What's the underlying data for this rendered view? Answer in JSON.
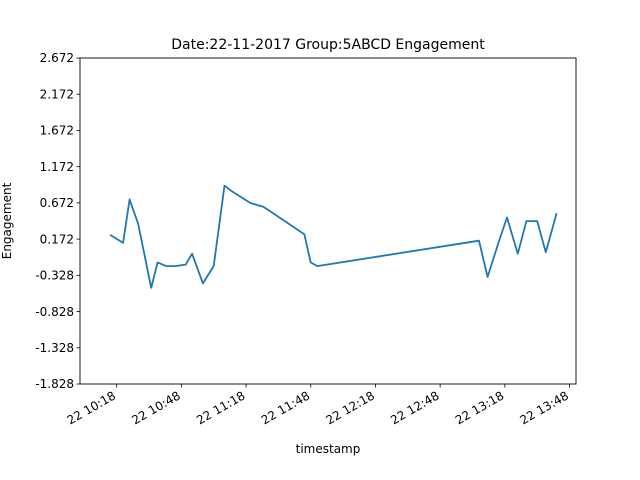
{
  "chart_data": {
    "type": "line",
    "title": "Date:22-11-2017 Group:5ABCD Engagement",
    "xlabel": "timestamp",
    "ylabel": "Engagement",
    "y_ticks": [
      "-1.828",
      "-1.328",
      "-0.828",
      "-0.328",
      "0.172",
      "0.672",
      "1.172",
      "1.672",
      "2.172",
      "2.672"
    ],
    "ylim": [
      -1.828,
      2.672
    ],
    "x_ticks": [
      "22 10:18",
      "22 10:48",
      "22 11:18",
      "22 11:48",
      "22 12:18",
      "22 12:48",
      "22 13:18",
      "22 13:48"
    ],
    "xlim": [
      "2017-11-22 10:01",
      "2017-11-22 13:51"
    ],
    "grid": false,
    "series_color": "#1f77b4",
    "series": [
      {
        "x": [
          "2017-11-22 10:15",
          "2017-11-22 10:21",
          "2017-11-22 10:24",
          "2017-11-22 10:28",
          "2017-11-22 10:34",
          "2017-11-22 10:37",
          "2017-11-22 10:41",
          "2017-11-22 10:45",
          "2017-11-22 10:50",
          "2017-11-22 10:53",
          "2017-11-22 10:58",
          "2017-11-22 11:03",
          "2017-11-22 11:08",
          "2017-11-22 11:11",
          "2017-11-22 11:20",
          "2017-11-22 11:26",
          "2017-11-22 11:29",
          "2017-11-22 11:45",
          "2017-11-22 11:48",
          "2017-11-22 11:51",
          "2017-11-22 13:06",
          "2017-11-22 13:10",
          "2017-11-22 13:15",
          "2017-11-22 13:19",
          "2017-11-22 13:24",
          "2017-11-22 13:28",
          "2017-11-22 13:33",
          "2017-11-22 13:37",
          "2017-11-22 13:42"
        ],
        "values": [
          0.23,
          0.12,
          0.72,
          0.38,
          -0.5,
          -0.15,
          -0.2,
          -0.2,
          -0.18,
          -0.03,
          -0.44,
          -0.2,
          0.91,
          0.84,
          0.67,
          0.62,
          0.56,
          0.24,
          -0.15,
          -0.2,
          0.15,
          -0.35,
          0.12,
          0.47,
          -0.03,
          0.42,
          0.42,
          -0.01,
          0.53
        ]
      }
    ]
  }
}
